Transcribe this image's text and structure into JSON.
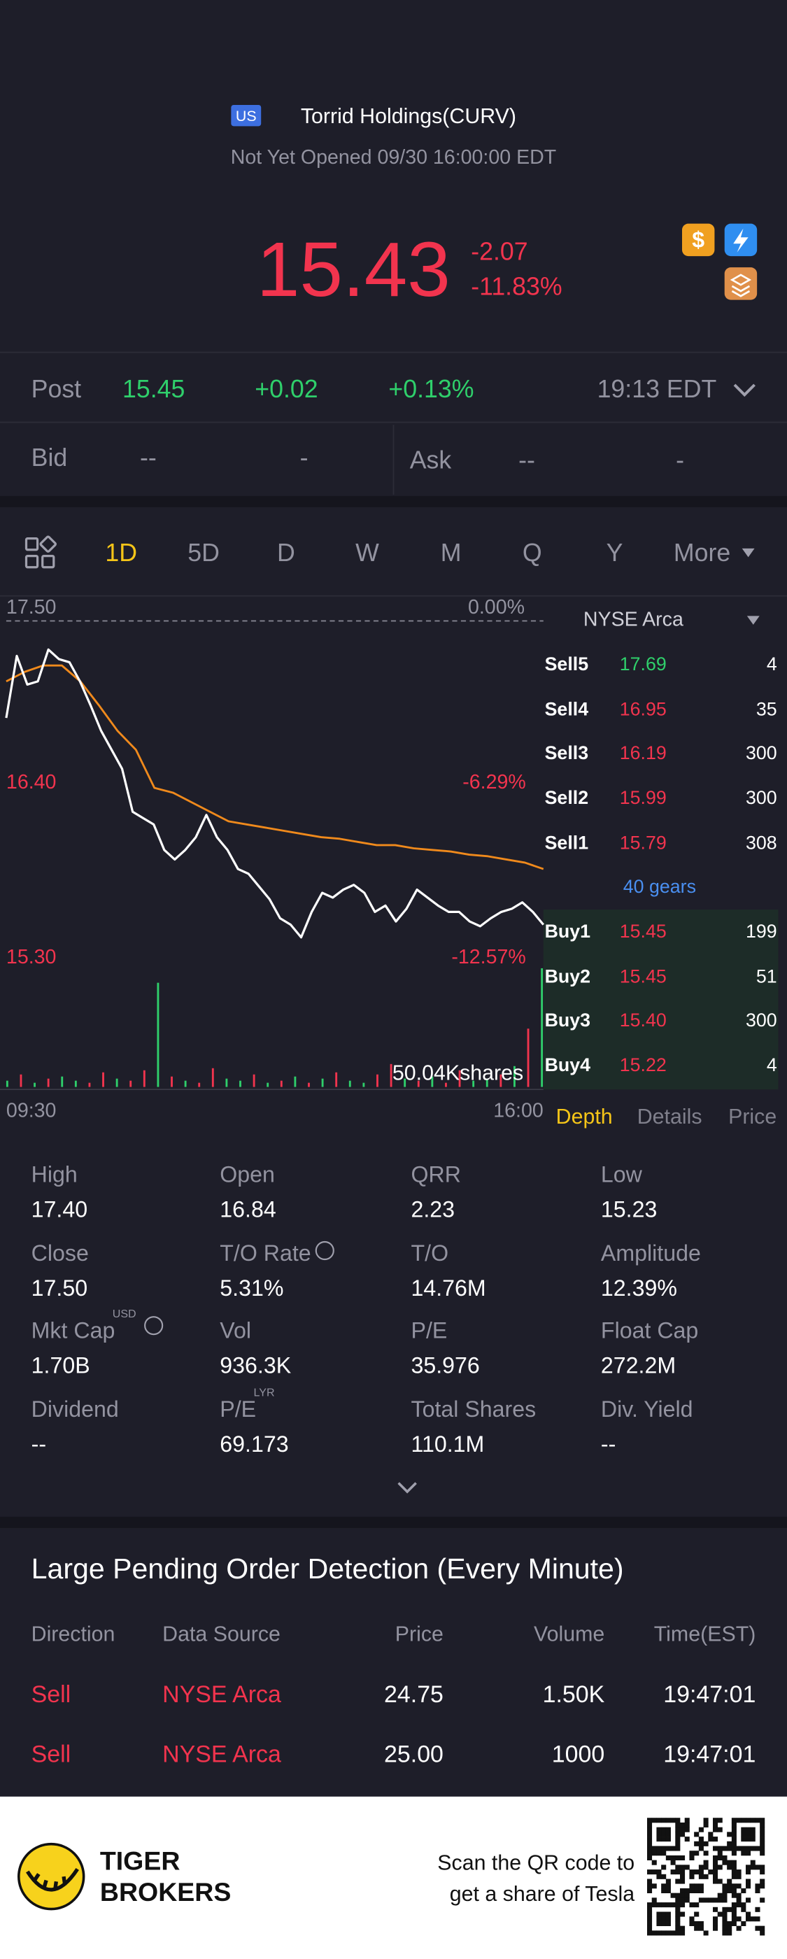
{
  "header": {
    "badge": "US",
    "name": "Torrid Holdings(CURV)",
    "status": "Not Yet Opened 09/30 16:00:00 EDT"
  },
  "quote": {
    "price": "15.43",
    "change": "-2.07",
    "change_pct": "-11.83%"
  },
  "post": {
    "label": "Post",
    "price": "15.45",
    "change": "+0.02",
    "change_pct": "+0.13%",
    "time": "19:13 EDT"
  },
  "bid_ask": {
    "bid_label": "Bid",
    "bid_price": "--",
    "bid_size": "-",
    "ask_label": "Ask",
    "ask_price": "--",
    "ask_size": "-"
  },
  "tabs": {
    "items": [
      "1D",
      "5D",
      "D",
      "W",
      "M",
      "Q",
      "Y",
      "More"
    ],
    "active": 0
  },
  "chart": {
    "ylim": [
      15.3,
      17.5
    ],
    "price_ticks": [
      {
        "value": 17.5,
        "label": "17.50"
      },
      {
        "value": 16.4,
        "label": "16.40"
      },
      {
        "value": 15.3,
        "label": "15.30"
      }
    ],
    "y2lim": [
      -12.57,
      0
    ],
    "pct_ticks": [
      {
        "value": 0,
        "label": "0.00%"
      },
      {
        "value": -6.29,
        "label": "-6.29%"
      },
      {
        "value": -12.57,
        "label": "-12.57%"
      }
    ],
    "time_labels": [
      "09:30",
      "16:00"
    ],
    "price_color": "#ffffff",
    "price": [
      16.89,
      17.28,
      17.1,
      17.12,
      17.32,
      17.26,
      17.24,
      17.12,
      16.97,
      16.81,
      16.69,
      16.57,
      16.3,
      16.26,
      16.22,
      16.06,
      16.0,
      16.06,
      16.14,
      16.28,
      16.14,
      16.06,
      15.94,
      15.91,
      15.83,
      15.75,
      15.63,
      15.59,
      15.51,
      15.67,
      15.79,
      15.76,
      15.81,
      15.84,
      15.79,
      15.67,
      15.71,
      15.61,
      15.69,
      15.81,
      15.76,
      15.71,
      15.67,
      15.67,
      15.61,
      15.58,
      15.63,
      15.67,
      15.69,
      15.73,
      15.67,
      15.59
    ],
    "avg_color": "#f08a1c",
    "avg": [
      17.12,
      17.18,
      17.22,
      17.22,
      17.12,
      16.97,
      16.81,
      16.69,
      16.45,
      16.42,
      16.36,
      16.3,
      16.24,
      16.22,
      16.2,
      16.18,
      16.16,
      16.14,
      16.13,
      16.11,
      16.09,
      16.09,
      16.07,
      16.06,
      16.05,
      16.03,
      16.02,
      16.0,
      15.98,
      15.94
    ],
    "volume_label": "50.04Kshares",
    "vlim": [
      0,
      60
    ],
    "volume": [
      3,
      6,
      2,
      4,
      5,
      3,
      2,
      7,
      4,
      3,
      8,
      50.04,
      5,
      3,
      2,
      9,
      4,
      3,
      6,
      2,
      3,
      5,
      2,
      4,
      7,
      3,
      2,
      6,
      11,
      4,
      3,
      5,
      2,
      8,
      3,
      4,
      6,
      10,
      28,
      57
    ],
    "volume_colors": [
      "#2fcf6b",
      "#f2344e",
      "#2fcf6b",
      "#f2344e",
      "#2fcf6b",
      "#2fcf6b",
      "#f2344e",
      "#f2344e",
      "#2fcf6b",
      "#f2344e",
      "#f2344e",
      "#2fcf6b",
      "#f2344e",
      "#2fcf6b",
      "#f2344e",
      "#f2344e",
      "#2fcf6b",
      "#2fcf6b",
      "#f2344e",
      "#2fcf6b",
      "#f2344e",
      "#2fcf6b",
      "#f2344e",
      "#2fcf6b",
      "#f2344e",
      "#2fcf6b",
      "#2fcf6b",
      "#f2344e",
      "#f2344e",
      "#2fcf6b",
      "#f2344e",
      "#2fcf6b",
      "#f2344e",
      "#f2344e",
      "#2fcf6b",
      "#2fcf6b",
      "#f2344e",
      "#2fcf6b",
      "#f2344e",
      "#2fcf6b"
    ]
  },
  "order_book": {
    "exchange": "NYSE Arca",
    "gears": "40 gears",
    "sell": [
      {
        "label": "Sell5",
        "price": "17.69",
        "qty": "4",
        "color": "#2fcf6b"
      },
      {
        "label": "Sell4",
        "price": "16.95",
        "qty": "35",
        "color": "#f2344e"
      },
      {
        "label": "Sell3",
        "price": "16.19",
        "qty": "300",
        "color": "#f2344e"
      },
      {
        "label": "Sell2",
        "price": "15.99",
        "qty": "300",
        "color": "#f2344e"
      },
      {
        "label": "Sell1",
        "price": "15.79",
        "qty": "308",
        "color": "#f2344e"
      }
    ],
    "buy": [
      {
        "label": "Buy1",
        "price": "15.45",
        "qty": "199",
        "color": "#f2344e"
      },
      {
        "label": "Buy2",
        "price": "15.45",
        "qty": "51",
        "color": "#f2344e"
      },
      {
        "label": "Buy3",
        "price": "15.40",
        "qty": "300",
        "color": "#f2344e"
      },
      {
        "label": "Buy4",
        "price": "15.22",
        "qty": "4",
        "color": "#f2344e"
      }
    ],
    "tabs": [
      "Depth",
      "Details",
      "Price"
    ],
    "active": 0
  },
  "stats": [
    [
      {
        "label": "High",
        "value": "17.40"
      },
      {
        "label": "Open",
        "value": "16.84"
      },
      {
        "label": "QRR",
        "value": "2.23"
      },
      {
        "label": "Low",
        "value": "15.23"
      }
    ],
    [
      {
        "label": "Close",
        "value": "17.50"
      },
      {
        "label": "T/O Rate",
        "value": "5.31%"
      },
      {
        "label": "T/O",
        "value": "14.76M"
      },
      {
        "label": "Amplitude",
        "value": "12.39%"
      }
    ],
    [
      {
        "label": "Mkt Cap",
        "sup": "USD",
        "value": "1.70B"
      },
      {
        "label": "Vol",
        "value": "936.3K"
      },
      {
        "label": "P/E",
        "value": "35.976"
      },
      {
        "label": "Float Cap",
        "value": "272.2M"
      }
    ],
    [
      {
        "label": "Dividend",
        "value": "--"
      },
      {
        "label": "P/E",
        "sup": "LYR",
        "value": "69.173"
      },
      {
        "label": "Total Shares",
        "value": "110.1M"
      },
      {
        "label": "Div. Yield",
        "value": "--"
      }
    ]
  ],
  "pending": {
    "title": "Large Pending Order Detection (Every Minute)",
    "columns": [
      "Direction",
      "Data Source",
      "Price",
      "Volume",
      "Time(EST)"
    ],
    "rows": [
      [
        "Sell",
        "NYSE Arca",
        "24.75",
        "1.50K",
        "19:47:01"
      ],
      [
        "Sell",
        "NYSE Arca",
        "25.00",
        "1000",
        "19:47:01"
      ]
    ]
  },
  "footer": {
    "brand": [
      "TIGER",
      "BROKERS"
    ],
    "scan": [
      "Scan the QR code to",
      "get a share of Tesla"
    ]
  }
}
